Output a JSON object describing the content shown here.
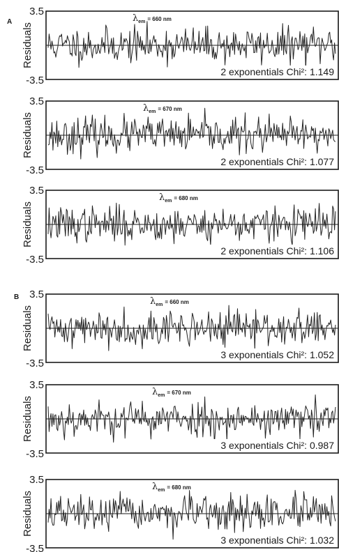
{
  "figure": {
    "group_labels": [
      "A",
      "B"
    ]
  },
  "chart_data": [
    {
      "type": "line",
      "group": "A",
      "ylabel": "Residuals",
      "ylim": [
        -3.5,
        3.5
      ],
      "yticks": [
        "3.5",
        "-3.5"
      ],
      "lambda_symbol": "λ",
      "lambda_sub": "em",
      "lambda_value": "= 660 nm",
      "fit": "2 exponentials",
      "chi_label": "Chi²:",
      "chi_value": "1.149",
      "seed": 11
    },
    {
      "type": "line",
      "group": "A",
      "ylabel": "Residuals",
      "ylim": [
        -3.5,
        3.5
      ],
      "yticks": [
        "3.5",
        "-3.5"
      ],
      "lambda_symbol": "λ",
      "lambda_sub": "em",
      "lambda_value": "= 670 nm",
      "fit": "2 exponentials",
      "chi_label": "Chi²:",
      "chi_value": "1.077",
      "seed": 23
    },
    {
      "type": "line",
      "group": "A",
      "ylabel": "Residuals",
      "ylim": [
        -3.5,
        3.5
      ],
      "yticks": [
        "3.5",
        "-3.5"
      ],
      "lambda_symbol": "λ",
      "lambda_sub": "em",
      "lambda_value": "= 680 nm",
      "fit": "2 exponentials",
      "chi_label": "Chi²:",
      "chi_value": "1.106",
      "seed": 37
    },
    {
      "type": "line",
      "group": "B",
      "ylabel": "Residuals",
      "ylim": [
        -3.5,
        3.5
      ],
      "yticks": [
        "3.5",
        "-3.5"
      ],
      "lambda_symbol": "λ",
      "lambda_sub": "em",
      "lambda_value": "= 660 nm",
      "fit": "3 exponentials",
      "chi_label": "Chi²:",
      "chi_value": "1.052",
      "seed": 41
    },
    {
      "type": "line",
      "group": "B",
      "ylabel": "Residuals",
      "ylim": [
        -3.5,
        3.5
      ],
      "yticks": [
        "3.5",
        "-3.5"
      ],
      "lambda_symbol": "λ",
      "lambda_sub": "em",
      "lambda_value": "= 670 nm",
      "fit": "3 exponentials",
      "chi_label": "Chi²:",
      "chi_value": "0.987",
      "seed": 53
    },
    {
      "type": "line",
      "group": "B",
      "ylabel": "Residuals",
      "ylim": [
        -3.5,
        3.5
      ],
      "yticks": [
        "3.5",
        "-3.5"
      ],
      "lambda_symbol": "λ",
      "lambda_sub": "em",
      "lambda_value": "= 680 nm",
      "fit": "3 exponentials",
      "chi_label": "Chi²:",
      "chi_value": "1.032",
      "seed": 67
    }
  ]
}
